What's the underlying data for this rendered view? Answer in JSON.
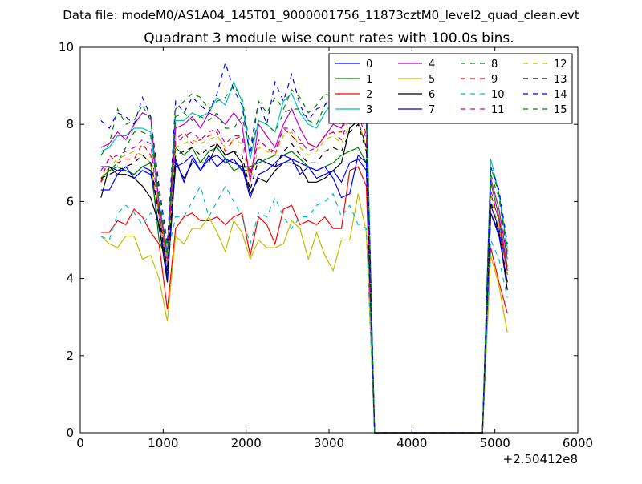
{
  "suptitle": "Data file: modeM0/AS1A04_145T01_9000001756_11873cztM0_level2_quad_clean.evt",
  "chart_data": {
    "type": "line",
    "title": "Quadrant 3 module wise count rates with 100.0s bins.",
    "xlabel": "",
    "ylabel": "",
    "x_offset_label": "+2.50412e8",
    "xlim": [
      0,
      6000
    ],
    "ylim": [
      0,
      10
    ],
    "x_ticks": [
      "0",
      "1000",
      "2000",
      "3000",
      "4000",
      "5000",
      "6000"
    ],
    "y_ticks": [
      "0",
      "2",
      "4",
      "6",
      "8",
      "10"
    ],
    "grid": false,
    "legend_position": "top-right",
    "legend_columns": 4,
    "x": [
      250,
      350,
      450,
      550,
      650,
      750,
      850,
      950,
      1050,
      1150,
      1250,
      1350,
      1450,
      1550,
      1650,
      1750,
      1850,
      1950,
      2050,
      2150,
      2250,
      2350,
      2450,
      2550,
      2650,
      2750,
      2850,
      2950,
      3050,
      3150,
      3250,
      3350,
      3450,
      3550,
      3650,
      3750,
      3850,
      3950,
      4050,
      4150,
      4250,
      4350,
      4450,
      4550,
      4650,
      4750,
      4850,
      4950,
      5050,
      5150
    ],
    "series": [
      {
        "name": "0",
        "color": "#0000ff",
        "dash": "solid",
        "values": [
          6.9,
          6.9,
          6.8,
          6.8,
          6.7,
          6.9,
          6.8,
          5.3,
          4.3,
          6.9,
          7.0,
          7.2,
          6.8,
          7.1,
          7.2,
          7.0,
          7.1,
          6.8,
          6.8,
          7.1,
          7.0,
          6.9,
          7.0,
          7.1,
          7.0,
          6.9,
          6.6,
          6.7,
          6.8,
          6.5,
          7.0,
          7.1,
          6.8,
          0,
          0,
          0,
          0,
          0,
          0,
          0,
          0,
          0,
          0,
          0,
          0,
          0,
          0,
          5.9,
          5.3,
          4.2
        ]
      },
      {
        "name": "1",
        "color": "#008000",
        "dash": "solid",
        "values": [
          6.6,
          6.8,
          6.9,
          6.8,
          6.7,
          6.9,
          7.0,
          5.0,
          4.4,
          7.4,
          7.2,
          7.4,
          7.0,
          7.3,
          7.4,
          7.1,
          6.8,
          6.9,
          6.9,
          7.0,
          7.1,
          7.2,
          7.2,
          7.3,
          7.1,
          6.9,
          6.8,
          6.9,
          7.0,
          7.2,
          7.3,
          7.4,
          7.0,
          0,
          0,
          0,
          0,
          0,
          0,
          0,
          0,
          0,
          0,
          0,
          0,
          0,
          0,
          6.5,
          5.6,
          4.3
        ]
      },
      {
        "name": "2",
        "color": "#ff0000",
        "dash": "solid",
        "values": [
          5.2,
          5.2,
          5.5,
          5.4,
          5.8,
          5.6,
          5.2,
          4.9,
          3.2,
          5.3,
          5.6,
          5.7,
          5.5,
          5.5,
          5.6,
          5.4,
          5.6,
          5.7,
          4.6,
          5.6,
          5.4,
          4.9,
          5.8,
          5.9,
          5.4,
          5.5,
          5.4,
          5.6,
          5.3,
          5.3,
          6.8,
          6.9,
          6.4,
          0,
          0,
          0,
          0,
          0,
          0,
          0,
          0,
          0,
          0,
          0,
          0,
          0,
          0,
          4.8,
          3.9,
          3.1
        ]
      },
      {
        "name": "3",
        "color": "#00bfbf",
        "dash": "solid",
        "values": [
          7.3,
          7.4,
          7.7,
          7.7,
          7.9,
          7.9,
          7.8,
          6.0,
          4.7,
          8.1,
          8.1,
          8.3,
          8.2,
          8.3,
          8.7,
          8.5,
          9.1,
          8.6,
          7.1,
          8.1,
          8.0,
          7.8,
          8.6,
          8.8,
          8.3,
          8.0,
          7.9,
          8.3,
          8.6,
          8.2,
          9.6,
          9.7,
          8.8,
          0,
          0,
          0,
          0,
          0,
          0,
          0,
          0,
          0,
          0,
          0,
          0,
          0,
          0,
          7.1,
          6.2,
          4.8
        ]
      },
      {
        "name": "4",
        "color": "#bf00bf",
        "dash": "solid",
        "values": [
          7.4,
          7.5,
          7.8,
          7.6,
          8.0,
          8.3,
          8.2,
          5.9,
          4.6,
          7.9,
          8.0,
          8.2,
          7.9,
          8.3,
          8.2,
          8.0,
          8.3,
          8.0,
          6.5,
          8.0,
          7.7,
          7.4,
          8.0,
          8.4,
          7.9,
          7.5,
          7.4,
          7.7,
          8.0,
          7.9,
          8.5,
          9.0,
          8.1,
          0,
          0,
          0,
          0,
          0,
          0,
          0,
          0,
          0,
          0,
          0,
          0,
          0,
          0,
          6.6,
          5.8,
          4.5
        ]
      },
      {
        "name": "5",
        "color": "#bfbf00",
        "dash": "solid",
        "values": [
          5.1,
          4.9,
          4.8,
          5.1,
          5.1,
          4.5,
          4.6,
          4.0,
          2.9,
          5.1,
          4.9,
          5.3,
          5.3,
          5.6,
          5.2,
          4.7,
          5.5,
          5.2,
          4.5,
          5.0,
          4.8,
          4.8,
          4.9,
          5.5,
          5.3,
          4.5,
          5.2,
          4.6,
          4.2,
          5.0,
          5.0,
          6.2,
          5.2,
          0,
          0,
          0,
          0,
          0,
          0,
          0,
          0,
          0,
          0,
          0,
          0,
          0,
          0,
          4.6,
          3.8,
          2.6
        ]
      },
      {
        "name": "6",
        "color": "#000000",
        "dash": "solid",
        "values": [
          6.1,
          6.9,
          6.7,
          6.7,
          6.6,
          6.4,
          6.1,
          5.4,
          3.9,
          7.0,
          6.6,
          7.0,
          7.0,
          7.0,
          7.5,
          7.2,
          7.3,
          7.0,
          6.2,
          6.6,
          6.5,
          6.8,
          7.0,
          7.0,
          6.9,
          6.5,
          6.5,
          6.6,
          6.8,
          7.0,
          7.9,
          8.1,
          7.4,
          0,
          0,
          0,
          0,
          0,
          0,
          0,
          0,
          0,
          0,
          0,
          0,
          0,
          0,
          5.7,
          5.2,
          3.7
        ]
      },
      {
        "name": "7",
        "color": "#0000ff",
        "dash": "solid",
        "values": [
          6.3,
          6.3,
          6.7,
          6.9,
          6.6,
          6.8,
          6.7,
          5.8,
          4.0,
          7.1,
          6.5,
          7.1,
          6.8,
          7.2,
          6.9,
          7.1,
          7.0,
          6.9,
          6.1,
          6.7,
          6.8,
          7.0,
          7.2,
          7.1,
          6.7,
          6.9,
          6.8,
          6.9,
          6.6,
          6.1,
          6.2,
          7.2,
          7.0,
          0,
          0,
          0,
          0,
          0,
          0,
          0,
          0,
          0,
          0,
          0,
          0,
          0,
          0,
          5.7,
          5.1,
          3.9
        ]
      },
      {
        "name": "8",
        "color": "#008000",
        "dash": "dashed",
        "values": [
          6.5,
          6.8,
          7.0,
          7.4,
          7.8,
          7.8,
          7.7,
          6.0,
          4.6,
          8.2,
          8.3,
          8.1,
          8.2,
          8.1,
          8.3,
          7.9,
          7.9,
          8.2,
          7.3,
          8.1,
          8.0,
          7.8,
          8.3,
          8.4,
          8.4,
          8.1,
          8.0,
          8.5,
          8.7,
          8.8,
          8.8,
          8.5,
          8.0,
          0,
          0,
          0,
          0,
          0,
          0,
          0,
          0,
          0,
          0,
          0,
          0,
          0,
          0,
          6.7,
          6.1,
          4.6
        ]
      },
      {
        "name": "9",
        "color": "#ff0000",
        "dash": "dashed",
        "values": [
          6.5,
          7.2,
          7.0,
          7.1,
          7.1,
          7.5,
          7.2,
          5.7,
          4.5,
          7.6,
          7.8,
          7.5,
          7.6,
          7.7,
          7.8,
          7.3,
          7.6,
          7.7,
          6.7,
          7.6,
          7.4,
          7.2,
          7.9,
          7.7,
          7.5,
          7.5,
          7.4,
          7.7,
          7.8,
          7.8,
          8.4,
          8.6,
          7.7,
          0,
          0,
          0,
          0,
          0,
          0,
          0,
          0,
          0,
          0,
          0,
          0,
          0,
          0,
          6.2,
          5.5,
          4.1
        ]
      },
      {
        "name": "10",
        "color": "#00bfbf",
        "dash": "dashed",
        "values": [
          5.1,
          5.0,
          5.7,
          5.9,
          5.7,
          5.4,
          5.7,
          5.4,
          4.6,
          5.6,
          5.6,
          6.0,
          6.4,
          5.6,
          6.0,
          6.4,
          6.0,
          5.6,
          4.9,
          5.7,
          5.6,
          6.1,
          5.6,
          5.3,
          5.6,
          5.6,
          5.9,
          6.0,
          6.2,
          5.6,
          5.9,
          5.4,
          5.3,
          0,
          0,
          0,
          0,
          0,
          0,
          0,
          0,
          0,
          0,
          0,
          0,
          0,
          0,
          5.0,
          4.5,
          3.5
        ]
      },
      {
        "name": "11",
        "color": "#bf00bf",
        "dash": "dashed",
        "values": [
          6.8,
          7.1,
          7.2,
          7.3,
          7.4,
          7.6,
          7.5,
          5.7,
          4.4,
          7.5,
          7.7,
          7.8,
          7.6,
          7.8,
          7.9,
          7.5,
          7.7,
          7.7,
          6.6,
          7.6,
          7.4,
          7.3,
          7.9,
          7.9,
          7.6,
          7.3,
          7.4,
          7.7,
          7.8,
          7.6,
          8.2,
          8.3,
          7.6,
          0,
          0,
          0,
          0,
          0,
          0,
          0,
          0,
          0,
          0,
          0,
          0,
          0,
          0,
          6.3,
          5.5,
          4.2
        ]
      },
      {
        "name": "12",
        "color": "#bfbf00",
        "dash": "dashed",
        "values": [
          6.6,
          6.9,
          7.1,
          7.2,
          7.3,
          7.2,
          7.0,
          5.6,
          4.3,
          7.4,
          7.5,
          7.6,
          7.5,
          7.6,
          7.7,
          7.4,
          7.6,
          7.5,
          6.5,
          7.4,
          7.3,
          7.2,
          7.7,
          7.8,
          7.4,
          7.2,
          7.3,
          7.6,
          7.7,
          7.5,
          8.0,
          8.1,
          7.4,
          0,
          0,
          0,
          0,
          0,
          0,
          0,
          0,
          0,
          0,
          0,
          0,
          0,
          0,
          6.1,
          5.3,
          4.0
        ]
      },
      {
        "name": "13",
        "color": "#000000",
        "dash": "dashed",
        "values": [
          6.6,
          6.7,
          6.8,
          6.9,
          7.0,
          7.2,
          7.0,
          5.6,
          4.2,
          7.2,
          7.3,
          7.4,
          7.2,
          7.4,
          7.5,
          7.2,
          7.3,
          7.2,
          6.3,
          7.1,
          7.0,
          6.9,
          7.3,
          7.5,
          7.2,
          7.0,
          7.0,
          7.3,
          7.4,
          7.3,
          7.8,
          8.0,
          7.3,
          0,
          0,
          0,
          0,
          0,
          0,
          0,
          0,
          0,
          0,
          0,
          0,
          0,
          0,
          6.0,
          5.2,
          3.9
        ]
      },
      {
        "name": "14",
        "color": "#0000ff",
        "dash": "dashed",
        "values": [
          8.1,
          7.9,
          8.3,
          8.2,
          8.0,
          8.7,
          8.2,
          6.4,
          4.9,
          8.6,
          8.3,
          8.7,
          8.5,
          8.3,
          8.8,
          9.6,
          8.9,
          8.5,
          7.2,
          8.6,
          8.0,
          9.1,
          8.6,
          9.3,
          8.5,
          8.1,
          8.4,
          8.5,
          8.8,
          8.6,
          9.1,
          9.0,
          8.4,
          0,
          0,
          0,
          0,
          0,
          0,
          0,
          0,
          0,
          0,
          0,
          0,
          0,
          0,
          6.9,
          6.3,
          4.9
        ]
      },
      {
        "name": "15",
        "color": "#008000",
        "dash": "dashed",
        "values": [
          7.2,
          7.5,
          8.4,
          8.0,
          8.1,
          8.5,
          8.1,
          6.2,
          4.7,
          8.4,
          8.6,
          8.8,
          8.7,
          8.4,
          8.6,
          8.7,
          9.0,
          8.7,
          7.4,
          8.6,
          8.3,
          8.7,
          8.4,
          8.9,
          8.7,
          8.3,
          8.5,
          8.8,
          8.7,
          8.5,
          8.9,
          8.9,
          8.3,
          0,
          0,
          0,
          0,
          0,
          0,
          0,
          0,
          0,
          0,
          0,
          0,
          0,
          0,
          6.9,
          6.2,
          4.7
        ]
      }
    ]
  }
}
